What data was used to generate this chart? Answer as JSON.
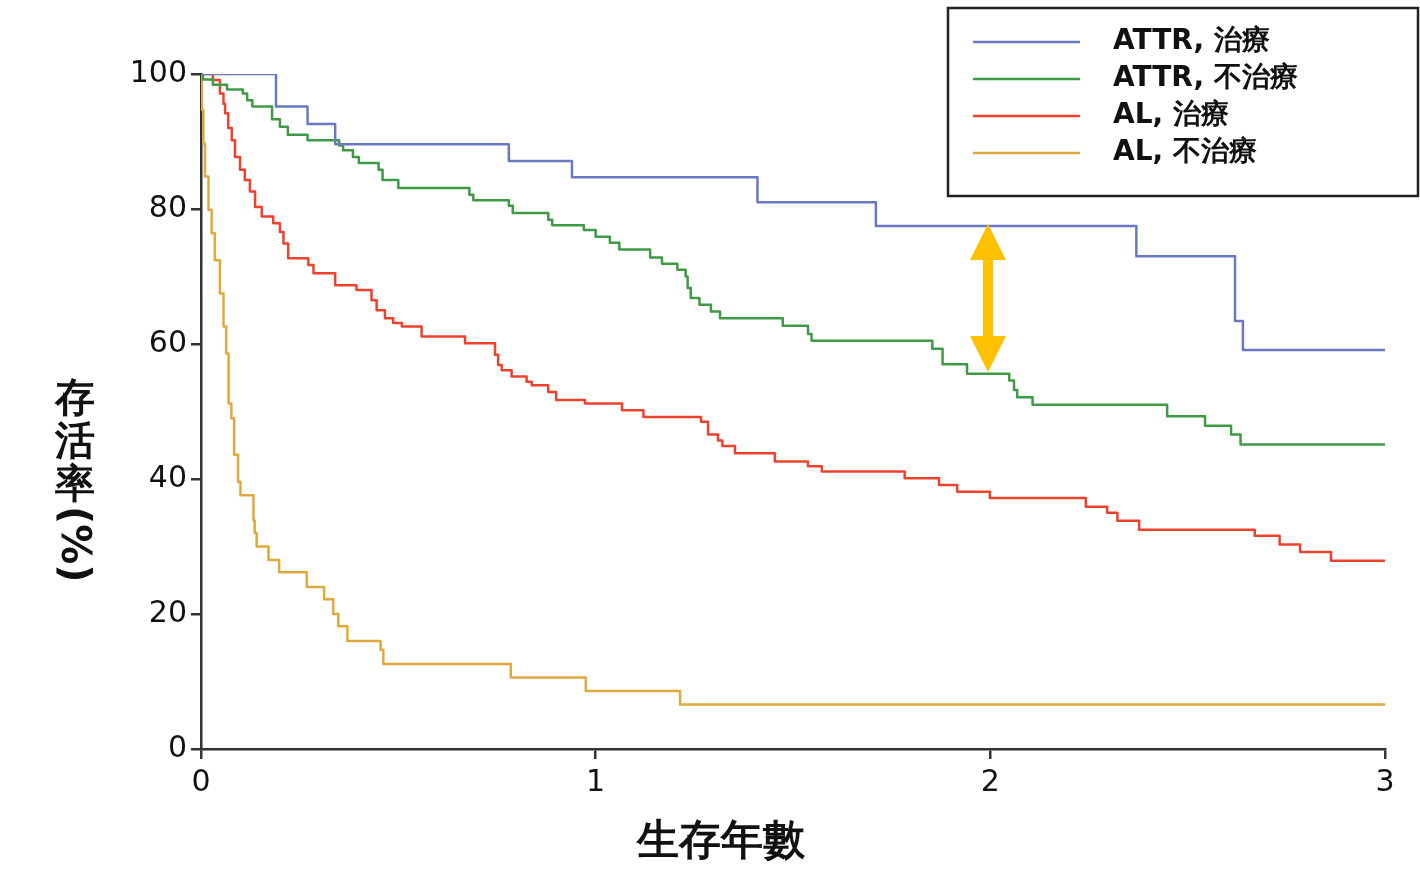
{
  "chart_data": {
    "type": "step",
    "xlabel": "生存年數",
    "ylabel": "存活率(%)",
    "xlim": [
      0,
      3
    ],
    "xticks": [
      0,
      1,
      2,
      3
    ],
    "ylim": [
      0,
      100
    ],
    "yticks": [
      0,
      20,
      40,
      60,
      80,
      100
    ],
    "grid": false,
    "legend": "top right",
    "marker": "none",
    "line_style": "solid",
    "series": [
      {
        "name": "ATTR, 治療",
        "color": "#6a78c4",
        "x": [
          0,
          0.19,
          0.27,
          0.34,
          0.78,
          0.94,
          1.41,
          1.71,
          2.37,
          2.62,
          2.64,
          3
        ],
        "values": [
          100,
          95.2,
          92.6,
          89.6,
          87.1,
          84.7,
          81,
          77.5,
          73,
          63.4,
          59.1,
          59.1
        ]
      },
      {
        "name": "ATTR, 不治療",
        "color": "#3f9a45",
        "x": [
          0,
          0.005,
          0.03,
          0.066,
          0.106,
          0.117,
          0.13,
          0.18,
          0.2,
          0.22,
          0.27,
          0.35,
          0.36,
          0.385,
          0.4,
          0.45,
          0.46,
          0.5,
          0.68,
          0.69,
          0.78,
          0.79,
          0.88,
          0.89,
          0.97,
          1.0,
          1.036,
          1.06,
          1.138,
          1.168,
          1.207,
          1.228,
          1.233,
          1.241,
          1.263,
          1.292,
          1.315,
          1.474,
          1.538,
          1.547,
          1.853,
          1.879,
          1.941,
          2.048,
          2.06,
          2.068,
          2.107,
          2.448,
          2.544,
          2.61,
          2.634,
          3
        ],
        "values": [
          100,
          99.2,
          98.4,
          97.7,
          97.1,
          96.1,
          95.2,
          93.3,
          92.2,
          91,
          90.2,
          89.4,
          88.7,
          87.7,
          86.8,
          85.8,
          84.3,
          83.1,
          82.1,
          81.3,
          80.5,
          79.4,
          78.4,
          77.6,
          76.9,
          75.9,
          75,
          74,
          72.8,
          71.9,
          71,
          70,
          68.3,
          66.8,
          65.8,
          64.8,
          63.8,
          62.7,
          61.5,
          60.5,
          59.3,
          57,
          55.6,
          54.6,
          53.2,
          52.1,
          51,
          49.3,
          47.9,
          46.6,
          45.1,
          45.1
        ]
      },
      {
        "name": "AL, 治療",
        "color": "#f0412c",
        "x": [
          0,
          0.03,
          0.048,
          0.057,
          0.061,
          0.069,
          0.078,
          0.086,
          0.099,
          0.111,
          0.124,
          0.137,
          0.154,
          0.183,
          0.2,
          0.209,
          0.221,
          0.272,
          0.285,
          0.34,
          0.394,
          0.432,
          0.445,
          0.466,
          0.487,
          0.509,
          0.559,
          0.669,
          0.745,
          0.753,
          0.762,
          0.787,
          0.825,
          0.838,
          0.88,
          0.9,
          0.973,
          1.067,
          1.121,
          1.267,
          1.285,
          1.31,
          1.321,
          1.353,
          1.454,
          1.538,
          1.573,
          1.783,
          1.87,
          1.916,
          1.999,
          2.242,
          2.296,
          2.322,
          2.377,
          2.67,
          2.733,
          2.785,
          2.863,
          3
        ],
        "values": [
          100,
          99.1,
          97.1,
          95.6,
          94.2,
          92,
          90.2,
          87.7,
          85.8,
          84.3,
          82.6,
          80.3,
          78.9,
          77.9,
          76.6,
          74.9,
          72.7,
          71.7,
          70.5,
          68.7,
          68,
          66.5,
          65,
          63.8,
          63.1,
          62.6,
          61.1,
          60.1,
          58.4,
          56.9,
          56.1,
          55.2,
          54.4,
          53.9,
          52.9,
          51.7,
          51.2,
          50.2,
          49.2,
          48.5,
          46.6,
          45.7,
          44.9,
          43.8,
          42.6,
          41.9,
          41.1,
          40.1,
          39.1,
          38.1,
          37.2,
          35.9,
          35,
          33.8,
          32.5,
          31.6,
          30.3,
          29.2,
          27.9,
          27.9
        ]
      },
      {
        "name": "AL, 不治療",
        "color": "#e0a93b",
        "x": [
          0,
          0.002,
          0.006,
          0.01,
          0.019,
          0.027,
          0.035,
          0.048,
          0.057,
          0.064,
          0.07,
          0.077,
          0.084,
          0.094,
          0.1,
          0.133,
          0.136,
          0.141,
          0.171,
          0.198,
          0.268,
          0.312,
          0.335,
          0.348,
          0.371,
          0.455,
          0.462,
          0.785,
          0.975,
          1.214,
          3
        ],
        "values": [
          100,
          94.7,
          89.7,
          84.8,
          79.9,
          76.4,
          72.4,
          67.5,
          62.6,
          58.6,
          51.2,
          49,
          43.6,
          39.6,
          37.6,
          33.9,
          32,
          30,
          28,
          26.2,
          24,
          22.2,
          20,
          18.2,
          16,
          14.7,
          12.6,
          10.6,
          8.6,
          6.6,
          6.6
        ]
      }
    ]
  }
}
